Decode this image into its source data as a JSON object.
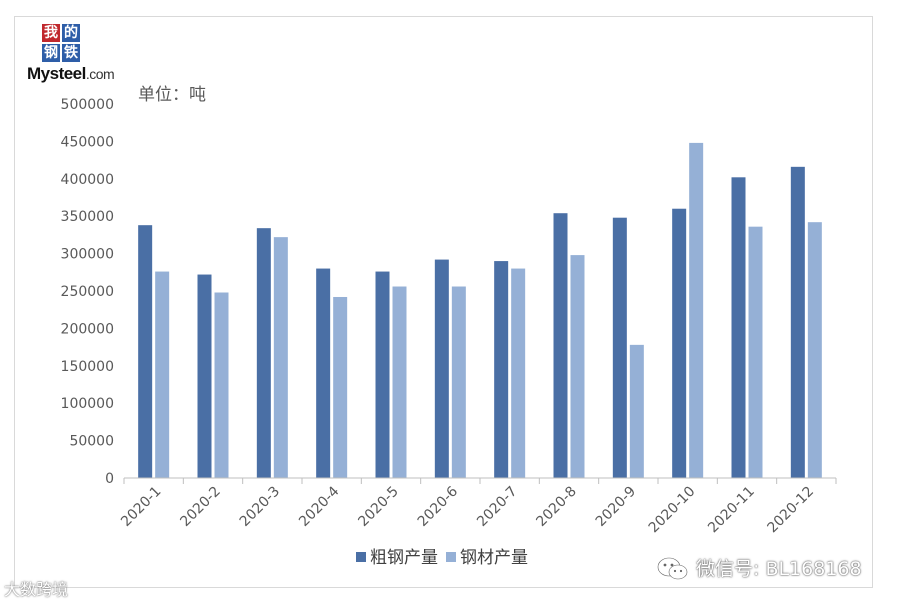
{
  "logo": {
    "chars": [
      "我",
      "的",
      "钢",
      "铁"
    ],
    "brand": "Mysteel",
    "domain": ".com",
    "colors": [
      "#c0282d",
      "#2e5ea8",
      "#2e5ea8",
      "#2e5ea8"
    ]
  },
  "unit_label": "单位：吨",
  "watermark": {
    "left": "大数跨境",
    "right": "微信号: BL168168"
  },
  "chart_data": {
    "type": "bar",
    "categories": [
      "2020-1",
      "2020-2",
      "2020-3",
      "2020-4",
      "2020-5",
      "2020-6",
      "2020-7",
      "2020-8",
      "2020-9",
      "2020-10",
      "2020-11",
      "2020-12"
    ],
    "series": [
      {
        "name": "粗钢产量",
        "color": "#4a6fa5",
        "values": [
          338000,
          272000,
          334000,
          280000,
          276000,
          292000,
          290000,
          354000,
          348000,
          360000,
          402000,
          416000
        ]
      },
      {
        "name": "钢材产量",
        "color": "#95b0d6",
        "values": [
          276000,
          248000,
          322000,
          242000,
          256000,
          256000,
          280000,
          298000,
          178000,
          448000,
          336000,
          342000
        ]
      }
    ],
    "ylim": [
      0,
      500000
    ],
    "yticks": [
      "0",
      "50000",
      "100000",
      "150000",
      "200000",
      "250000",
      "300000",
      "350000",
      "400000",
      "450000",
      "500000"
    ],
    "grid": false,
    "legend_position": "bottom"
  }
}
